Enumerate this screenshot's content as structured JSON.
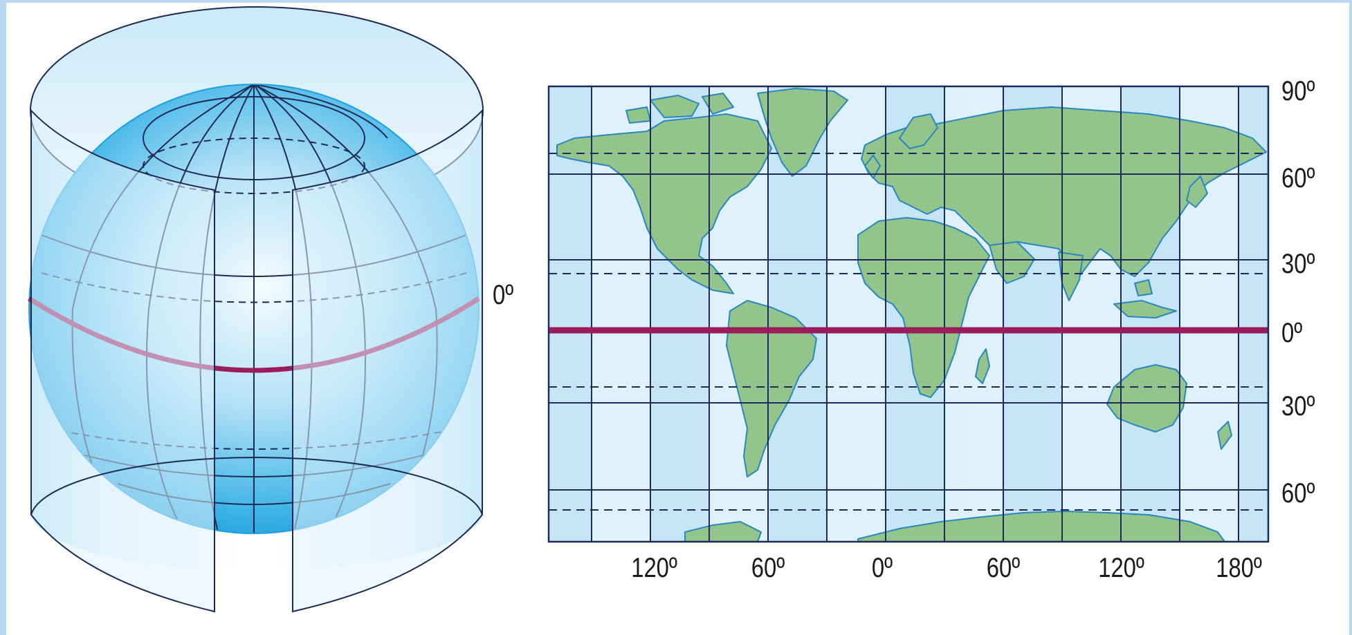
{
  "globe_labels": {
    "equator": "0º"
  },
  "map_labels": {
    "latitude": [
      "90º",
      "60º",
      "30º",
      "0º",
      "30º",
      "60º"
    ],
    "longitude": [
      "120º",
      "60º",
      "0º",
      "60º",
      "120º",
      "180º"
    ]
  },
  "colors": {
    "ocean": "#c6e5f7",
    "land": "#93c48b",
    "coast": "#2a86bf",
    "grid": "#1c2a55",
    "equator": "#9b1c5a",
    "globe_edge": "#1f9fdc",
    "globe_core": "#eaf7fd"
  },
  "icons": {
    "globe": "globe-cylinder-projection-icon"
  }
}
